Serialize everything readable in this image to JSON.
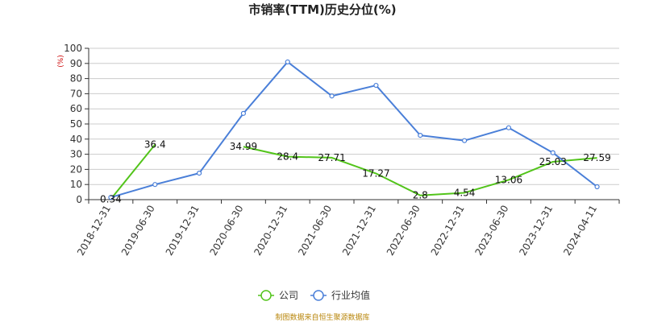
{
  "chart_data": {
    "type": "line",
    "title": "市销率(TTM)历史分位(%)",
    "ylabel": "(%)",
    "xlabel": "",
    "ylim": [
      0,
      100
    ],
    "yticks": [
      0,
      10,
      20,
      30,
      40,
      50,
      60,
      70,
      80,
      90,
      100
    ],
    "categories": [
      "2018-12-31",
      "2019-06-30",
      "2019-12-31",
      "2020-06-30",
      "2020-12-31",
      "2021-06-30",
      "2021-12-31",
      "2022-06-30",
      "2022-12-31",
      "2023-06-30",
      "2023-12-31",
      "2024-04-11"
    ],
    "grid": true,
    "legend_position": "bottom",
    "series": [
      {
        "name": "公司",
        "color": "#52c41a",
        "values": [
          0.34,
          36.4,
          null,
          34.99,
          28.4,
          27.71,
          17.27,
          2.8,
          4.54,
          13.06,
          25.03,
          27.59
        ],
        "labels": [
          "0.34",
          "36.4",
          "",
          "34.99",
          "28.4",
          "27.71",
          "17.27",
          "2.8",
          "4.54",
          "13.06",
          "25.03",
          "27.59"
        ],
        "show_markers": false
      },
      {
        "name": "行业均值",
        "color": "#4a7fd8",
        "values": [
          1.5,
          10,
          17.5,
          57,
          91,
          68.5,
          75.5,
          42.5,
          39,
          47.5,
          31,
          8.5
        ],
        "show_markers": true
      }
    ],
    "source": "制图数据来自恒生聚源数据库"
  }
}
